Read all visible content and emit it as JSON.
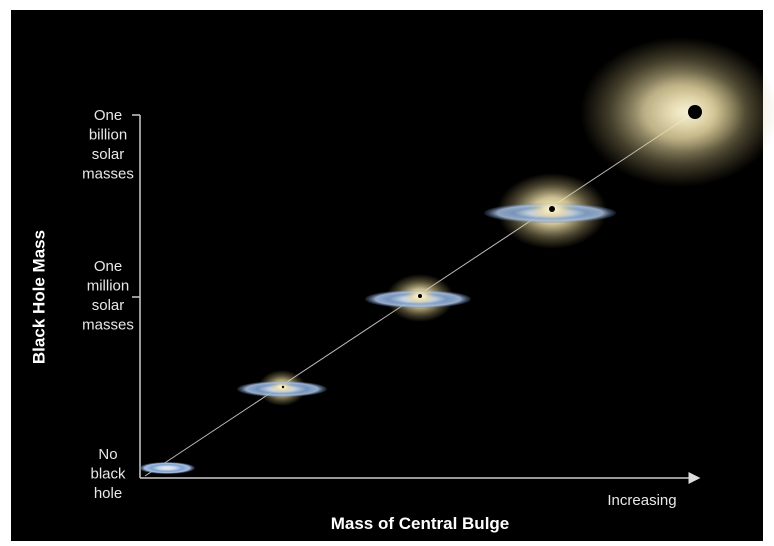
{
  "y_axis": {
    "title": "Black Hole Mass",
    "ticks": [
      {
        "lines": [
          "One",
          "billion",
          "solar",
          "masses"
        ]
      },
      {
        "lines": [
          "One",
          "million",
          "solar",
          "masses"
        ]
      },
      {
        "lines": [
          "No",
          "black",
          "hole"
        ]
      }
    ]
  },
  "x_axis": {
    "title": "Mass of Central Bulge",
    "end_label": "Increasing"
  }
}
